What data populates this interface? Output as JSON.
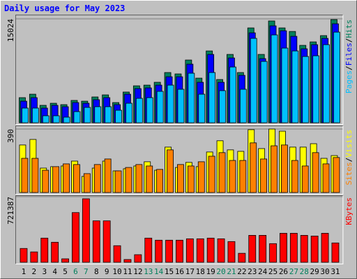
{
  "chart_data": [
    {
      "type": "bar",
      "title": "Daily usage for May 2023",
      "legend_separator": "/",
      "ylim": [
        0,
        15024
      ],
      "yticks": [
        15024
      ],
      "series": [
        {
          "name": "Hits",
          "color": "#00805c",
          "values": [
            3630,
            4130,
            2520,
            2820,
            2620,
            3230,
            3120,
            3730,
            4030,
            2920,
            4440,
            5340,
            5440,
            5850,
            7260,
            7060,
            9070,
            6450,
            10380,
            6250,
            9880,
            7260,
            13710,
            9880,
            14720,
            13710,
            13200,
            11190,
            11690,
            12600,
            14920
          ]
        },
        {
          "name": "Files",
          "color": "#0000ff",
          "values": [
            3120,
            3630,
            2120,
            2520,
            2320,
            2920,
            2820,
            3330,
            3630,
            2620,
            4130,
            4940,
            5040,
            5440,
            6650,
            6650,
            8470,
            5850,
            9880,
            5850,
            9370,
            6860,
            13000,
            9270,
            14010,
            13300,
            12500,
            10690,
            11290,
            12200,
            14310
          ]
        },
        {
          "name": "Pages",
          "color": "#00c0ff",
          "values": [
            2120,
            2120,
            1010,
            1010,
            810,
            1610,
            2220,
            2320,
            2320,
            1810,
            2820,
            3530,
            3630,
            4540,
            5440,
            4840,
            7160,
            4130,
            7260,
            4640,
            8060,
            4840,
            12200,
            8870,
            12700,
            10790,
            10380,
            9580,
            9680,
            11290,
            13100
          ]
        }
      ]
    },
    {
      "type": "bar",
      "ylim": [
        0,
        390
      ],
      "yticks": [
        390
      ],
      "series": [
        {
          "name": "Visits",
          "color": "#ffff00",
          "values": [
            292,
            326,
            150,
            159,
            163,
            193,
            99,
            150,
            193,
            133,
            146,
            163,
            189,
            137,
            279,
            154,
            185,
            159,
            249,
            318,
            262,
            253,
            386,
            270,
            390,
            377,
            279,
            279,
            300,
            210,
            227
          ]
        },
        {
          "name": "Sites",
          "color": "#ff8000",
          "values": [
            210,
            210,
            137,
            159,
            176,
            172,
            116,
            172,
            206,
            133,
            154,
            172,
            163,
            142,
            262,
            172,
            163,
            189,
            223,
            245,
            197,
            197,
            305,
            206,
            287,
            292,
            197,
            163,
            245,
            176,
            215
          ]
        }
      ]
    },
    {
      "type": "bar",
      "ylim": [
        0,
        721387
      ],
      "yticks": [
        721387
      ],
      "categories": [
        "1",
        "2",
        "3",
        "4",
        "5",
        "6",
        "7",
        "8",
        "9",
        "10",
        "11",
        "12",
        "13",
        "14",
        "15",
        "16",
        "17",
        "18",
        "19",
        "20",
        "21",
        "22",
        "23",
        "24",
        "25",
        "26",
        "27",
        "28",
        "29",
        "30",
        "31"
      ],
      "category_colors": [
        "#000000",
        "#000000",
        "#000000",
        "#000000",
        "#000000",
        "#00805c",
        "#00805c",
        "#000000",
        "#000000",
        "#000000",
        "#000000",
        "#000000",
        "#00805c",
        "#00805c",
        "#000000",
        "#000000",
        "#000000",
        "#000000",
        "#000000",
        "#00805c",
        "#00805c",
        "#000000",
        "#000000",
        "#000000",
        "#000000",
        "#000000",
        "#00805c",
        "#00805c",
        "#000000",
        "#000000",
        "#000000"
      ],
      "series": [
        {
          "name": "KBytes",
          "color": "#ff0000",
          "values": [
            151900,
            113900,
            265800,
            220200,
            37970,
            546800,
            698600,
            455600,
            455600,
            182300,
            30380,
            83530,
            265800,
            243000,
            243000,
            243000,
            258200,
            258200,
            265800,
            258200,
            227800,
            98720,
            296200,
            296200,
            205000,
            318900,
            318900,
            296200,
            288600,
            318900,
            212600
          ]
        }
      ]
    }
  ]
}
